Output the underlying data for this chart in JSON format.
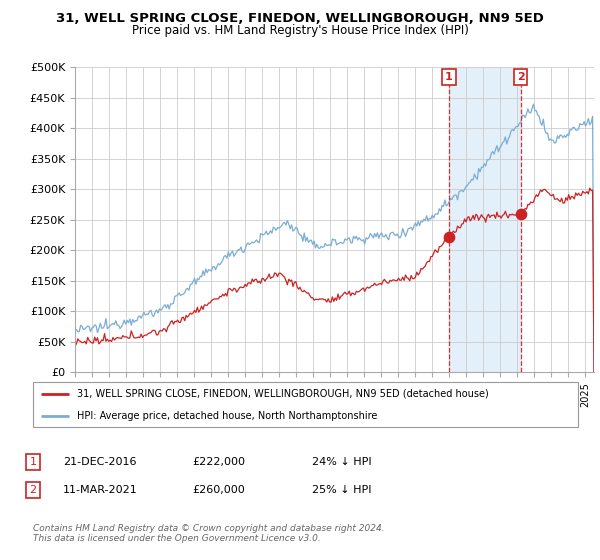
{
  "title_line1": "31, WELL SPRING CLOSE, FINEDON, WELLINGBOROUGH, NN9 5ED",
  "title_line2": "Price paid vs. HM Land Registry's House Price Index (HPI)",
  "ylim": [
    0,
    500000
  ],
  "yticks": [
    0,
    50000,
    100000,
    150000,
    200000,
    250000,
    300000,
    350000,
    400000,
    450000,
    500000
  ],
  "ytick_labels": [
    "£0",
    "£50K",
    "£100K",
    "£150K",
    "£200K",
    "£250K",
    "£300K",
    "£350K",
    "£400K",
    "£450K",
    "£500K"
  ],
  "sale1_date_num": 2016.97,
  "sale1_price": 222000,
  "sale1_label": "1",
  "sale2_date_num": 2021.19,
  "sale2_price": 260000,
  "sale2_label": "2",
  "sale1_date_str": "21-DEC-2016",
  "sale1_price_str": "£222,000",
  "sale1_hpi_str": "24% ↓ HPI",
  "sale2_date_str": "11-MAR-2021",
  "sale2_price_str": "£260,000",
  "sale2_hpi_str": "25% ↓ HPI",
  "legend_line1": "31, WELL SPRING CLOSE, FINEDON, WELLINGBOROUGH, NN9 5ED (detached house)",
  "legend_line2": "HPI: Average price, detached house, North Northamptonshire",
  "footer": "Contains HM Land Registry data © Crown copyright and database right 2024.\nThis data is licensed under the Open Government Licence v3.0.",
  "hpi_color": "#7aadd4",
  "sale_color": "#cc2222",
  "bg_color": "#ffffff",
  "grid_color": "#cccccc",
  "shade_color": "#d8eaf7"
}
